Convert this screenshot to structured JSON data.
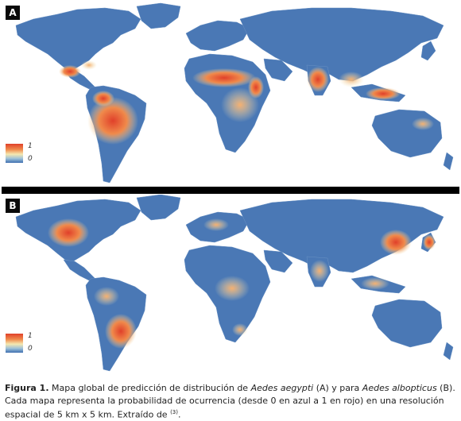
{
  "panels": [
    {
      "letter": "A",
      "legend_high": "1",
      "legend_low": "0"
    },
    {
      "letter": "B",
      "legend_high": "1",
      "legend_low": "0"
    }
  ],
  "colors": {
    "ocean": "#ffffff",
    "low_probability": "#3f6fb0",
    "mid_probability": "#f5e8b0",
    "high_probability": "#e0402a"
  },
  "caption": {
    "label": "Figura 1.",
    "text1": " Mapa global de predicción de distribución de ",
    "species_a": "Aedes aegypti",
    "text2": " (A) y para ",
    "species_b": "Aedes albopticus",
    "text3": " (B). Cada mapa representa la probabilidad de ocurrencia (desde 0 en azul a 1 en rojo) en una resolución espacial de 5 km x 5 km. Extraído de ",
    "ref": "(3)",
    "end": "."
  }
}
